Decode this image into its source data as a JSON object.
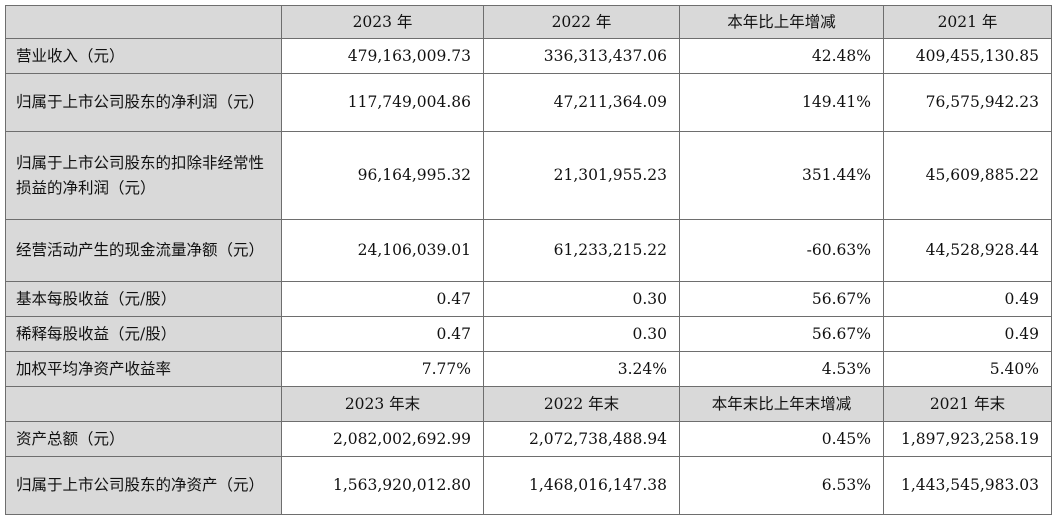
{
  "header1": [
    "",
    "2023 年",
    "2022 年",
    "本年比上年增减",
    "2021 年"
  ],
  "rows1": [
    {
      "label": "营业收入（元）",
      "values": [
        "479,163,009.73",
        "336,313,437.06",
        "42.48%",
        "409,455,130.85"
      ]
    },
    {
      "label": "归属于上市公司股东的净利润（元）",
      "values": [
        "117,749,004.86",
        "47,211,364.09",
        "149.41%",
        "76,575,942.23"
      ]
    },
    {
      "label": "归属于上市公司股东的扣除非经常性损益的净利润（元）",
      "values": [
        "96,164,995.32",
        "21,301,955.23",
        "351.44%",
        "45,609,885.22"
      ]
    },
    {
      "label": "经营活动产生的现金流量净额（元）",
      "values": [
        "24,106,039.01",
        "61,233,215.22",
        "-60.63%",
        "44,528,928.44"
      ]
    },
    {
      "label": "基本每股收益（元/股）",
      "values": [
        "0.47",
        "0.30",
        "56.67%",
        "0.49"
      ]
    },
    {
      "label": "稀释每股收益（元/股）",
      "values": [
        "0.47",
        "0.30",
        "56.67%",
        "0.49"
      ]
    },
    {
      "label": "加权平均净资产收益率",
      "values": [
        "7.77%",
        "3.24%",
        "4.53%",
        "5.40%"
      ]
    }
  ],
  "header2": [
    "",
    "2023 年末",
    "2022 年末",
    "本年末比上年末增减",
    "2021 年末"
  ],
  "rows2": [
    {
      "label": "资产总额（元）",
      "values": [
        "2,082,002,692.99",
        "2,072,738,488.94",
        "0.45%",
        "1,897,923,258.19"
      ]
    },
    {
      "label": "归属于上市公司股东的净资产（元）",
      "values": [
        "1,563,920,012.80",
        "1,468,016,147.38",
        "6.53%",
        "1,443,545,983.03"
      ]
    }
  ]
}
